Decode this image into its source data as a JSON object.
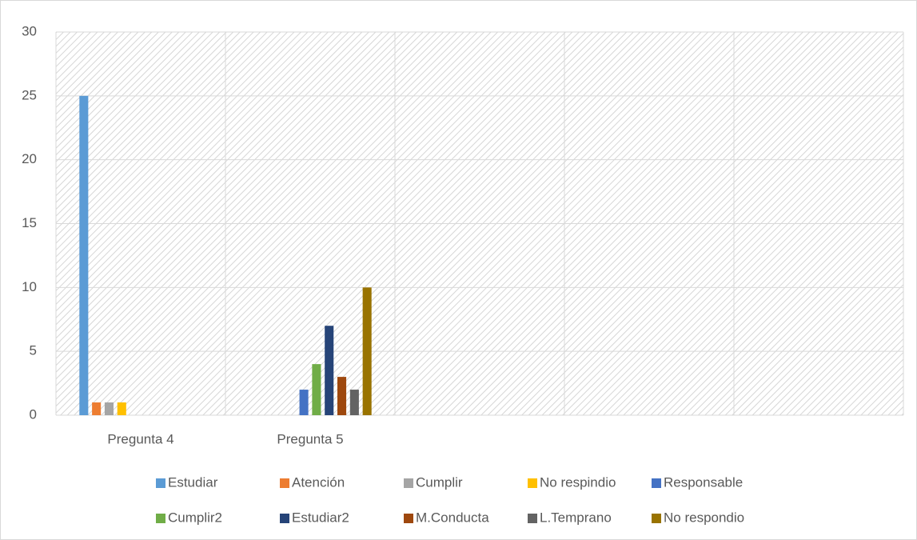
{
  "chart_data": {
    "type": "bar",
    "categories": [
      "Pregunta 4",
      "Pregunta 5",
      null,
      null,
      null
    ],
    "series": [
      {
        "name": "Estudiar",
        "color": "#5B9BD5",
        "values": [
          25,
          null,
          null,
          null,
          null
        ]
      },
      {
        "name": "Atención",
        "color": "#ED7D31",
        "values": [
          1,
          null,
          null,
          null,
          null
        ]
      },
      {
        "name": "Cumplir",
        "color": "#A5A5A5",
        "values": [
          1,
          null,
          null,
          null,
          null
        ]
      },
      {
        "name": "No respindio",
        "color": "#FFC000",
        "values": [
          1,
          null,
          null,
          null,
          null
        ]
      },
      {
        "name": "Responsable",
        "color": "#4472C4",
        "values": [
          null,
          2,
          null,
          null,
          null
        ]
      },
      {
        "name": "Cumplir2",
        "color": "#70AD47",
        "values": [
          null,
          4,
          null,
          null,
          null
        ]
      },
      {
        "name": "Estudiar2",
        "color": "#264478",
        "values": [
          null,
          7,
          null,
          null,
          null
        ]
      },
      {
        "name": "M.Conducta",
        "color": "#9E480E",
        "values": [
          null,
          3,
          null,
          null,
          null
        ]
      },
      {
        "name": "L.Temprano",
        "color": "#636363",
        "values": [
          null,
          2,
          null,
          null,
          null
        ]
      },
      {
        "name": "No respondio",
        "color": "#997300",
        "values": [
          null,
          10,
          null,
          null,
          null
        ]
      }
    ],
    "ylim": [
      0,
      30
    ],
    "yticks": [
      0,
      5,
      10,
      15,
      20,
      25,
      30
    ],
    "grid": true,
    "legend": "bottom"
  }
}
